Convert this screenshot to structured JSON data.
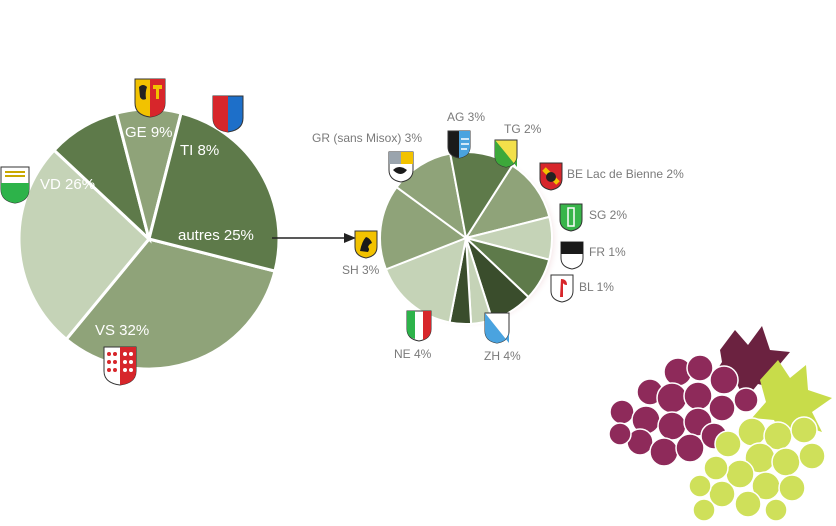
{
  "chart_data": [
    {
      "type": "pie",
      "slices": [
        {
          "label": "VS 32%",
          "canton": "VS",
          "value": 32,
          "color": "#8fa379"
        },
        {
          "label": "VD 26%",
          "canton": "VD",
          "value": 26,
          "color": "#c5d3b7"
        },
        {
          "label": "GE 9%",
          "canton": "GE",
          "value": 9,
          "color": "#5e7a4a"
        },
        {
          "label": "TI 8%",
          "canton": "TI",
          "value": 8,
          "color": "#8fa379"
        },
        {
          "label": "autres 25%",
          "canton": "autres",
          "value": 25,
          "color": "#5e7a4a"
        }
      ]
    },
    {
      "type": "pie",
      "slices": [
        {
          "label": "AG 3%",
          "canton": "AG",
          "value": 3,
          "color": "#8fa379"
        },
        {
          "label": "TG 2%",
          "canton": "TG",
          "value": 2,
          "color": "#c5d3b7"
        },
        {
          "label": "BE Lac de Bienne 2%",
          "canton": "BE",
          "value": 2,
          "color": "#5e7a4a"
        },
        {
          "label": "SG 2%",
          "canton": "SG",
          "value": 2,
          "color": "#3a4d2c"
        },
        {
          "label": "FR 1%",
          "canton": "FR",
          "value": 1,
          "color": "#c5d3b7"
        },
        {
          "label": "BL 1%",
          "canton": "BL",
          "value": 1,
          "color": "#3a4d2c"
        },
        {
          "label": "ZH 4%",
          "canton": "ZH",
          "value": 4,
          "color": "#c5d3b7"
        },
        {
          "label": "NE 4%",
          "canton": "NE",
          "value": 4,
          "color": "#8fa379"
        },
        {
          "label": "SH 3%",
          "canton": "SH",
          "value": 3,
          "color": "#8fa379"
        },
        {
          "label": "GR (sans Misox) 3%",
          "canton": "GR",
          "value": 3,
          "color": "#5e7a4a"
        }
      ]
    }
  ],
  "colors": {
    "edge": "#ffffff",
    "arrow": "#222222",
    "grape_red": "#8e2a5a",
    "grape_green": "#cfe05a",
    "leaf_dark": "#6b2240"
  }
}
